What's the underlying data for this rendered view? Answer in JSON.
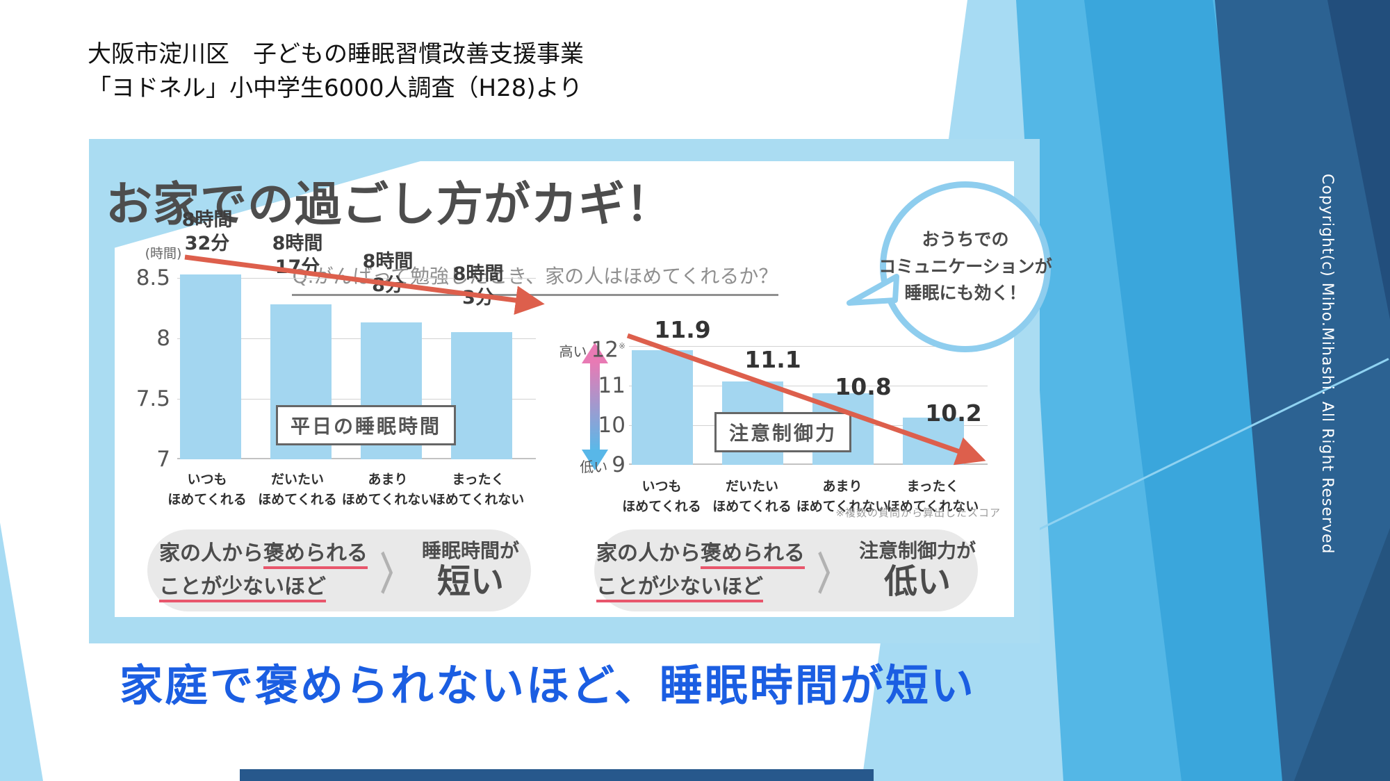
{
  "slide": {
    "header": {
      "line1": "大阪市淀川区　子どもの睡眠習慣改善支援事業",
      "line2": "「ヨドネル」小中学生6000人調査（H28)より"
    },
    "bottom_message": "家庭で褒められないほど、睡眠時間が短い",
    "copyright": "Copyright(c) Miho.Mihashi. All Right Reserved"
  },
  "infographic": {
    "headline": "お家での過ごし方がカギ！",
    "question": "Q.がんばって勉強したとき、家の人はほめてくれるか？",
    "bubble": {
      "line1": "おうちでの",
      "line2": "コミュニケーションが",
      "line3": "睡眠にも効く！"
    },
    "conclusion_left": {
      "cause_plain": "家の人から",
      "cause_underline1": "褒められる",
      "cause_line2": "ことが少ないほど",
      "chevron": "〉",
      "effect_top": "睡眠時間が",
      "effect_big": "短い"
    },
    "conclusion_right": {
      "cause_plain": "家の人から",
      "cause_underline1": "褒められる",
      "cause_line2": "ことが少ないほど",
      "chevron": "〉",
      "effect_top": "注意制御力が",
      "effect_big": "低い"
    }
  },
  "chart_data": [
    {
      "type": "bar",
      "title": "平日の睡眠時間",
      "unit": "(時間)",
      "categories": [
        "いつもほめてくれる",
        "だいたいほめてくれる",
        "あまりほめてくれない",
        "まったくほめてくれない"
      ],
      "category_lines": [
        [
          "いつも",
          "ほめてくれる"
        ],
        [
          "だいたい",
          "ほめてくれる"
        ],
        [
          "あまり",
          "ほめてくれない"
        ],
        [
          "まったく",
          "ほめてくれない"
        ]
      ],
      "values": [
        8.53,
        8.28,
        8.13,
        8.05
      ],
      "value_labels": [
        [
          "8時間",
          "32分"
        ],
        [
          "8時間",
          "17分"
        ],
        [
          "8時間",
          "8分"
        ],
        [
          "8時間",
          "3分"
        ]
      ],
      "yticks": [
        "8.5",
        "8",
        "7.5",
        "7"
      ],
      "ylim": [
        7,
        8.5
      ],
      "grid": true,
      "bar_color": "#a3d6f0",
      "trend_arrow_color": "#dd5f4c",
      "trend": "decreasing"
    },
    {
      "type": "bar",
      "title": "注意制御力",
      "y_axis_high_label": "高い",
      "y_axis_low_label": "低い",
      "tick_note": "※",
      "categories": [
        "いつもほめてくれる",
        "だいたいほめてくれる",
        "あまりほめてくれない",
        "まったくほめてくれない"
      ],
      "category_lines": [
        [
          "いつも",
          "ほめてくれる"
        ],
        [
          "だいたい",
          "ほめてくれる"
        ],
        [
          "あまり",
          "ほめてくれない"
        ],
        [
          "まったく",
          "ほめてくれない"
        ]
      ],
      "values": [
        11.9,
        11.1,
        10.8,
        10.2
      ],
      "value_labels": [
        "11.9",
        "11.1",
        "10.8",
        "10.2"
      ],
      "yticks": [
        "12",
        "11",
        "10",
        "9"
      ],
      "ylim": [
        9,
        12
      ],
      "grid": true,
      "bar_color": "#a3d6f0",
      "trend_arrow_color": "#dd5f4c",
      "trend": "decreasing",
      "footnote": "※複数の質問から算出したスコア"
    }
  ],
  "colors": {
    "panel_blue": "#aadcf2",
    "bar_blue": "#a3d6f0",
    "arrow_red": "#dd5f4c",
    "underline_red": "#e8566c",
    "message_blue": "#1b5ee2",
    "theme_mid_blue": "#54b7e6",
    "theme_navy": "#2c6292",
    "gradient_pink": "#e87ab4",
    "gradient_blue": "#59b9e9"
  }
}
